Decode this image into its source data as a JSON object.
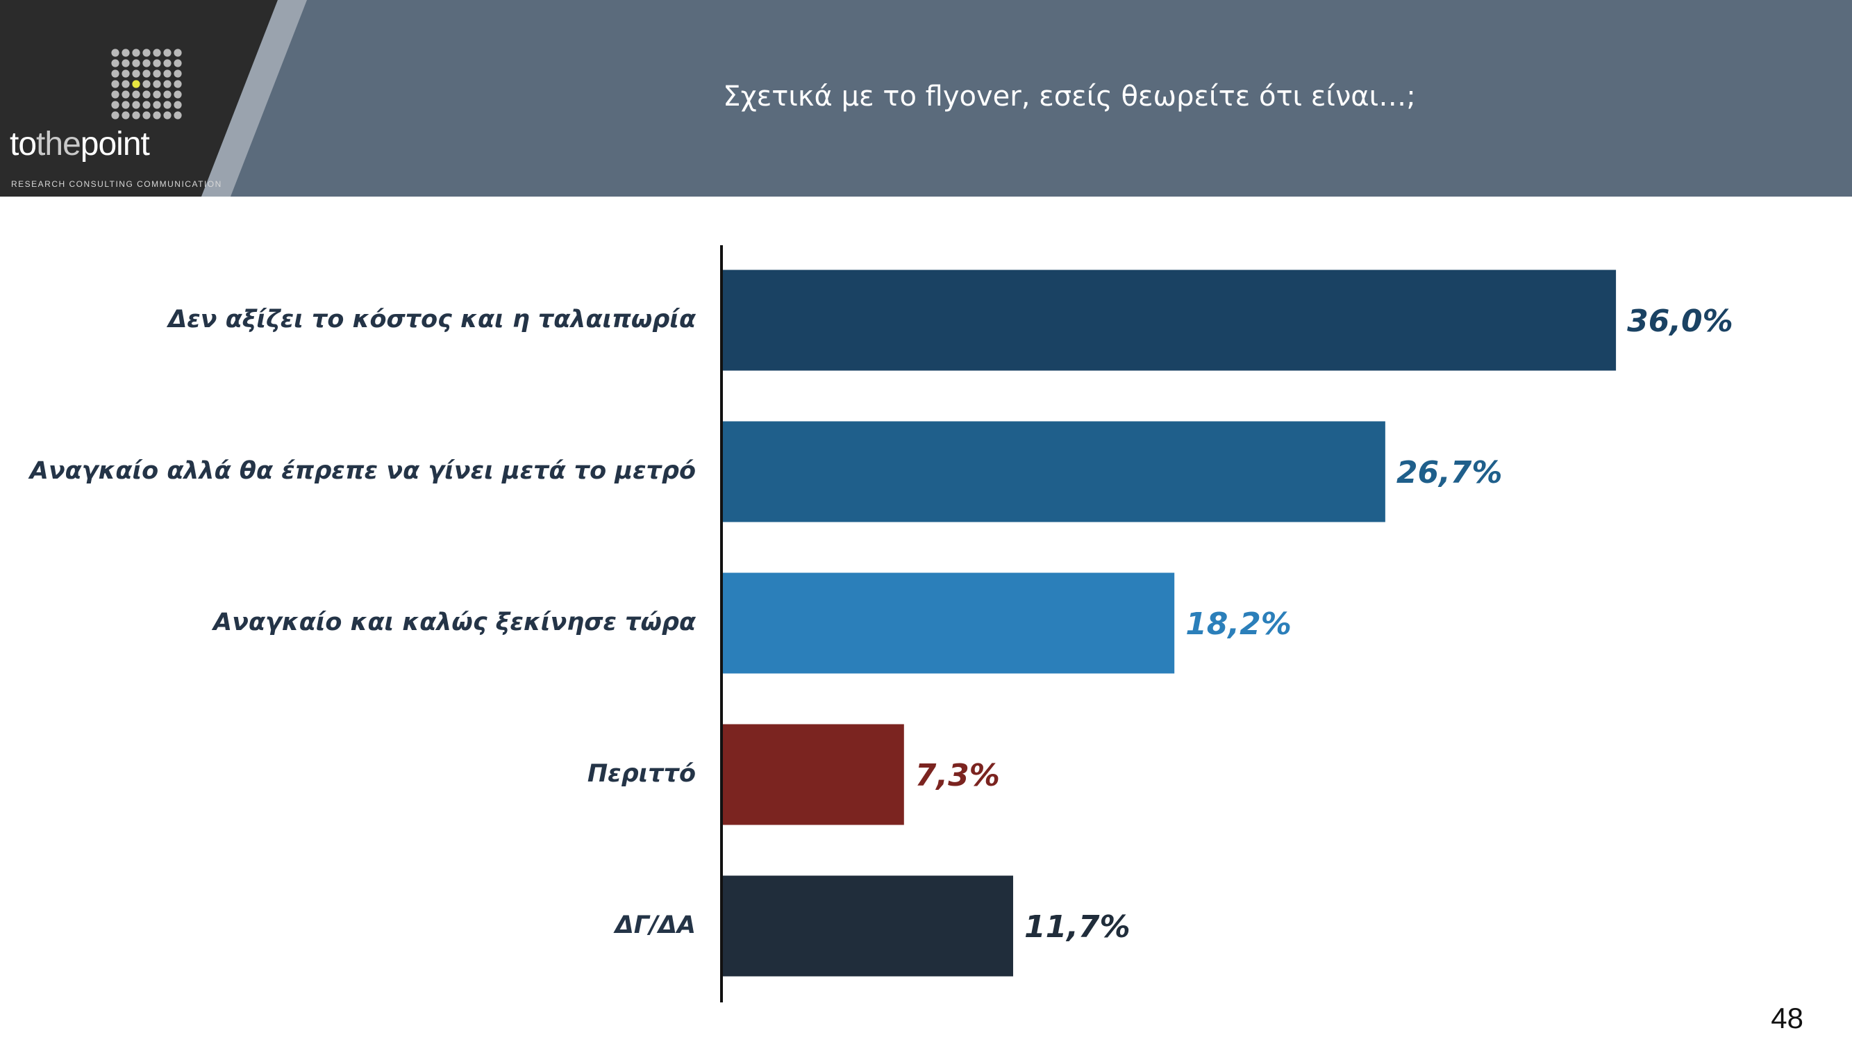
{
  "header": {
    "title": "Σχετικά με το flyover, εσείς θεωρείτε ότι είναι…;",
    "logo": {
      "part1": "to",
      "part2": "the",
      "part3": "point",
      "tagline": "RESEARCH  CONSULTING  COMMUNICATION"
    }
  },
  "colors": {
    "header_band": "#5b6b7c",
    "logo_bg": "#2b2b2b",
    "stripe": "#9aa3ae",
    "axis": "#111111"
  },
  "chart_data": {
    "type": "bar",
    "orientation": "horizontal",
    "title": "Σχετικά με το flyover, εσείς θεωρείτε ότι είναι…;",
    "categories": [
      "Δεν αξίζει το κόστος και η ταλαιπωρία",
      "Αναγκαίο αλλά θα έπρεπε να γίνει μετά το μετρό",
      "Αναγκαίο και καλώς ξεκίνησε τώρα",
      "Περιττό",
      "ΔΓ/ΔΑ"
    ],
    "values": [
      36.0,
      26.7,
      18.2,
      7.3,
      11.7
    ],
    "value_labels": [
      "36,0%",
      "26,7%",
      "18,2%",
      "7,3%",
      "11,7%"
    ],
    "colors": [
      "#1a4263",
      "#1f5f8b",
      "#2b7fba",
      "#7b2420",
      "#202d3b"
    ],
    "unit": "%",
    "xlim": [
      0,
      40
    ],
    "grid": false,
    "legend": false
  },
  "footer": {
    "page_number": "48"
  }
}
